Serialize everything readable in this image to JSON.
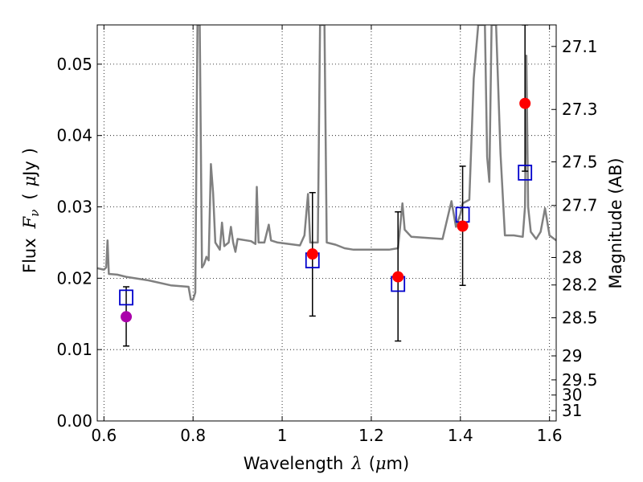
{
  "chart_data": {
    "type": "scatter",
    "xlabel": {
      "text": "Wavelength",
      "symbol": "λ",
      "unit": "(",
      "unit_mu": "μ",
      "unit_rest": "m)"
    },
    "ylabel": {
      "text": "Flux",
      "symbol": "F",
      "subscript": "ν",
      "unit_open": "(",
      "unit_mu": "μ",
      "unit_rest": "Jy",
      "unit_close": ")"
    },
    "y2label": "Magnitude (AB)",
    "xlim": [
      0.585,
      1.615
    ],
    "ylim": [
      0.0,
      0.0555
    ],
    "grid": true,
    "colors": {
      "spectrum": "#808080",
      "model": "#0000cc",
      "observed": "#ff0000",
      "observed_first": "#aa00aa",
      "errorbar": "#000000"
    },
    "x_ticks": [
      {
        "value": 0.6,
        "label": "0.6"
      },
      {
        "value": 0.8,
        "label": "0.8"
      },
      {
        "value": 1.0,
        "label": "1"
      },
      {
        "value": 1.2,
        "label": "1.2"
      },
      {
        "value": 1.4,
        "label": "1.4"
      },
      {
        "value": 1.6,
        "label": "1.6"
      }
    ],
    "y_ticks": [
      {
        "value": 0.0,
        "label": "0.00"
      },
      {
        "value": 0.01,
        "label": "0.01"
      },
      {
        "value": 0.02,
        "label": "0.02"
      },
      {
        "value": 0.03,
        "label": "0.03"
      },
      {
        "value": 0.04,
        "label": "0.04"
      },
      {
        "value": 0.05,
        "label": "0.05"
      }
    ],
    "mag_ticks": [
      {
        "value": 27.1,
        "label": "27.1"
      },
      {
        "value": 27.3,
        "label": "27.3"
      },
      {
        "value": 27.5,
        "label": "27.5"
      },
      {
        "value": 27.7,
        "label": "27.7"
      },
      {
        "value": 28.0,
        "label": "28"
      },
      {
        "value": 28.2,
        "label": "28.2"
      },
      {
        "value": 28.5,
        "label": "28.5"
      },
      {
        "value": 29.0,
        "label": "29"
      },
      {
        "value": 29.5,
        "label": "29.5"
      },
      {
        "value": 30.0,
        "label": "30"
      },
      {
        "value": 31.0,
        "label": "31"
      }
    ],
    "spectrum": [
      [
        0.585,
        0.0214
      ],
      [
        0.6,
        0.0212
      ],
      [
        0.605,
        0.0215
      ],
      [
        0.608,
        0.0253
      ],
      [
        0.611,
        0.0206
      ],
      [
        0.63,
        0.0205
      ],
      [
        0.65,
        0.0202
      ],
      [
        0.7,
        0.0197
      ],
      [
        0.75,
        0.019
      ],
      [
        0.79,
        0.0188
      ],
      [
        0.795,
        0.017
      ],
      [
        0.8,
        0.017
      ],
      [
        0.805,
        0.018
      ],
      [
        0.81,
        0.0555
      ],
      [
        0.815,
        0.0555
      ],
      [
        0.82,
        0.0215
      ],
      [
        0.825,
        0.022
      ],
      [
        0.83,
        0.023
      ],
      [
        0.835,
        0.0225
      ],
      [
        0.84,
        0.036
      ],
      [
        0.845,
        0.032
      ],
      [
        0.85,
        0.025
      ],
      [
        0.86,
        0.024
      ],
      [
        0.865,
        0.0278
      ],
      [
        0.87,
        0.0245
      ],
      [
        0.88,
        0.025
      ],
      [
        0.885,
        0.0272
      ],
      [
        0.89,
        0.025
      ],
      [
        0.895,
        0.0237
      ],
      [
        0.9,
        0.0255
      ],
      [
        0.93,
        0.0252
      ],
      [
        0.94,
        0.0248
      ],
      [
        0.943,
        0.0328
      ],
      [
        0.947,
        0.025
      ],
      [
        0.96,
        0.025
      ],
      [
        0.97,
        0.0275
      ],
      [
        0.975,
        0.0253
      ],
      [
        0.99,
        0.025
      ],
      [
        1.04,
        0.0246
      ],
      [
        1.05,
        0.026
      ],
      [
        1.058,
        0.0318
      ],
      [
        1.063,
        0.025
      ],
      [
        1.07,
        0.025
      ],
      [
        1.08,
        0.025
      ],
      [
        1.085,
        0.0555
      ],
      [
        1.095,
        0.0555
      ],
      [
        1.1,
        0.025
      ],
      [
        1.12,
        0.0247
      ],
      [
        1.14,
        0.0242
      ],
      [
        1.16,
        0.024
      ],
      [
        1.2,
        0.024
      ],
      [
        1.24,
        0.024
      ],
      [
        1.26,
        0.0242
      ],
      [
        1.27,
        0.0305
      ],
      [
        1.275,
        0.0268
      ],
      [
        1.29,
        0.0258
      ],
      [
        1.36,
        0.0255
      ],
      [
        1.38,
        0.0308
      ],
      [
        1.39,
        0.0272
      ],
      [
        1.4,
        0.029
      ],
      [
        1.405,
        0.0305
      ],
      [
        1.42,
        0.031
      ],
      [
        1.43,
        0.048
      ],
      [
        1.44,
        0.0555
      ],
      [
        1.455,
        0.0555
      ],
      [
        1.46,
        0.037
      ],
      [
        1.465,
        0.0335
      ],
      [
        1.47,
        0.0555
      ],
      [
        1.48,
        0.0555
      ],
      [
        1.49,
        0.0375
      ],
      [
        1.5,
        0.026
      ],
      [
        1.52,
        0.026
      ],
      [
        1.54,
        0.0258
      ],
      [
        1.545,
        0.03
      ],
      [
        1.548,
        0.0512
      ],
      [
        1.552,
        0.03
      ],
      [
        1.558,
        0.0265
      ],
      [
        1.57,
        0.0255
      ],
      [
        1.58,
        0.0265
      ],
      [
        1.59,
        0.0298
      ],
      [
        1.6,
        0.026
      ],
      [
        1.615,
        0.0253
      ]
    ],
    "model_points": [
      {
        "x": 0.65,
        "y": 0.0173
      },
      {
        "x": 1.068,
        "y": 0.0225
      },
      {
        "x": 1.26,
        "y": 0.0192
      },
      {
        "x": 1.405,
        "y": 0.0289
      },
      {
        "x": 1.545,
        "y": 0.0348
      }
    ],
    "observed_points": [
      {
        "x": 0.65,
        "y": 0.0146,
        "ylo": 0.0105,
        "yhi": 0.0188
      },
      {
        "x": 1.068,
        "y": 0.0234,
        "ylo": 0.0147,
        "yhi": 0.032
      },
      {
        "x": 1.26,
        "y": 0.0202,
        "ylo": 0.0112,
        "yhi": 0.0293
      },
      {
        "x": 1.405,
        "y": 0.0273,
        "ylo": 0.019,
        "yhi": 0.0357
      },
      {
        "x": 1.545,
        "y": 0.0445,
        "ylo": 0.035,
        "yhi": 0.0555
      }
    ]
  }
}
